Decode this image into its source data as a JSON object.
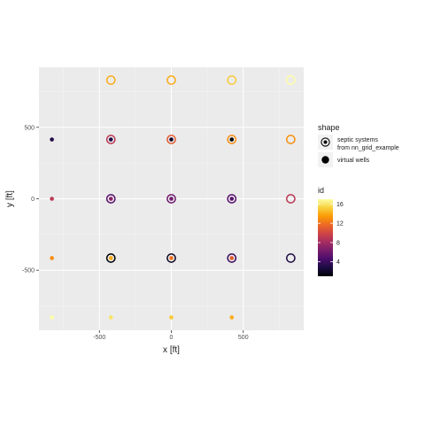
{
  "chart_data": {
    "type": "scatter",
    "xlabel": "x [ft]",
    "ylabel": "y [ft]",
    "xlim": [
      -920,
      920
    ],
    "ylim": [
      -920,
      920
    ],
    "x_ticks": [
      -500,
      0,
      500
    ],
    "x_tick_labels": [
      "-500",
      "0",
      "500"
    ],
    "y_ticks": [
      -500,
      0,
      500
    ],
    "y_tick_labels": [
      "-500",
      "0",
      "500"
    ],
    "grid": true,
    "legend_shape": {
      "title": "shape",
      "entries": [
        {
          "label_lines": [
            "septic systems",
            "from nn_grid_example"
          ],
          "marker": "open-circle-with-dot"
        },
        {
          "label_lines": [
            "virtual wells"
          ],
          "marker": "filled-circle"
        }
      ]
    },
    "legend_color": {
      "title": "id",
      "ticks": [
        4,
        8,
        12,
        16
      ],
      "range": [
        1,
        17
      ],
      "palette": [
        "#000004",
        "#1b0c41",
        "#4a0c6b",
        "#781c6d",
        "#a52c60",
        "#cf4446",
        "#ed6925",
        "#fb9b06",
        "#f7d13d",
        "#fcffa4"
      ]
    },
    "septic_systems": [
      {
        "x": -420,
        "y": 830,
        "id": 14
      },
      {
        "x": 0,
        "y": 830,
        "id": 14
      },
      {
        "x": 420,
        "y": 830,
        "id": 15
      },
      {
        "x": 830,
        "y": 830,
        "id": 17
      },
      {
        "x": -420,
        "y": 415,
        "id": 9
      },
      {
        "x": 0,
        "y": 415,
        "id": 11
      },
      {
        "x": 420,
        "y": 415,
        "id": 13
      },
      {
        "x": 830,
        "y": 415,
        "id": 13
      },
      {
        "x": -420,
        "y": 0,
        "id": 5
      },
      {
        "x": 0,
        "y": 0,
        "id": 6
      },
      {
        "x": 420,
        "y": 0,
        "id": 5
      },
      {
        "x": 830,
        "y": 0,
        "id": 9
      },
      {
        "x": -420,
        "y": -415,
        "id": 1
      },
      {
        "x": 0,
        "y": -415,
        "id": 2
      },
      {
        "x": 420,
        "y": -415,
        "id": 4
      },
      {
        "x": 830,
        "y": -415,
        "id": 3
      }
    ],
    "virtual_wells": [
      {
        "x": -830,
        "y": 415,
        "id": 3
      },
      {
        "x": -420,
        "y": 415,
        "id": 3
      },
      {
        "x": 0,
        "y": 415,
        "id": 2
      },
      {
        "x": 420,
        "y": 415,
        "id": 1
      },
      {
        "x": -830,
        "y": 0,
        "id": 9
      },
      {
        "x": -420,
        "y": 0,
        "id": 7
      },
      {
        "x": 0,
        "y": 0,
        "id": 6
      },
      {
        "x": 420,
        "y": 0,
        "id": 5
      },
      {
        "x": -830,
        "y": -415,
        "id": 13
      },
      {
        "x": -420,
        "y": -415,
        "id": 14
      },
      {
        "x": 0,
        "y": -415,
        "id": 12
      },
      {
        "x": 420,
        "y": -415,
        "id": 11
      },
      {
        "x": -830,
        "y": -830,
        "id": 17
      },
      {
        "x": -420,
        "y": -830,
        "id": 16
      },
      {
        "x": 0,
        "y": -830,
        "id": 15
      },
      {
        "x": 420,
        "y": -830,
        "id": 14
      }
    ]
  }
}
